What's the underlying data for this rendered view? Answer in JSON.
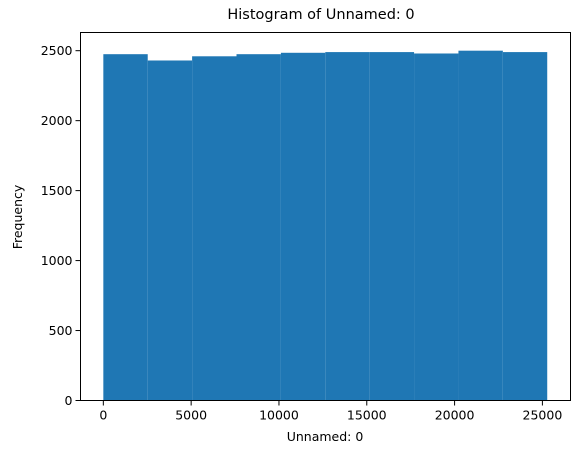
{
  "chart_data": {
    "type": "bar",
    "title": "Histogram of Unnamed: 0",
    "xlabel": "Unnamed: 0",
    "ylabel": "Frequency",
    "bin_edges": [
      0,
      2527.5,
      5055,
      7582.5,
      10110,
      12637.5,
      15165,
      17692.5,
      20220,
      22747.5,
      25275
    ],
    "values": [
      2475,
      2430,
      2460,
      2475,
      2485,
      2490,
      2490,
      2480,
      2500,
      2490
    ],
    "xlim": [
      -1300,
      26600
    ],
    "ylim": [
      0,
      2630
    ],
    "xticks": [
      0,
      5000,
      10000,
      15000,
      20000,
      25000
    ],
    "yticks": [
      0,
      500,
      1000,
      1500,
      2000,
      2500
    ],
    "grid": false,
    "legend": "none",
    "bar_color": "#1f77b4"
  }
}
